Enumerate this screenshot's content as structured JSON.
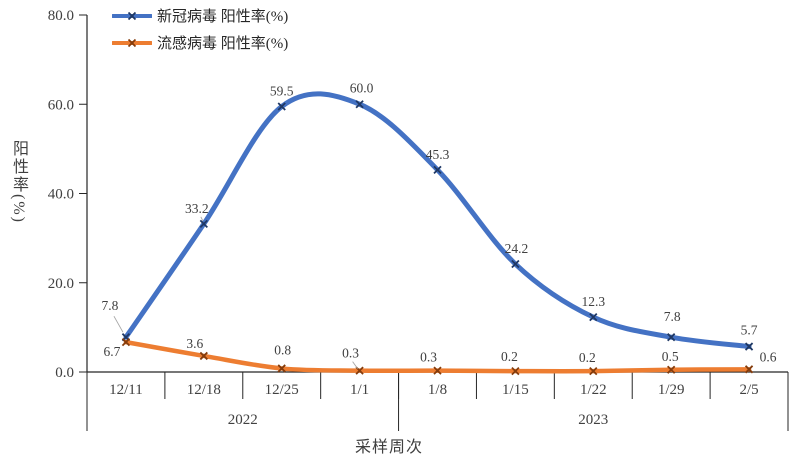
{
  "chart_data": {
    "type": "line",
    "title": "",
    "x_axis_label": "采样周次",
    "y_axis_label": "阳性率(%)",
    "grid": false,
    "legend_position": "top-left",
    "ylim": [
      0,
      80
    ],
    "y_ticks": [
      "0.0",
      "20.0",
      "40.0",
      "60.0",
      "80.0"
    ],
    "categories": [
      "12/11",
      "12/18",
      "12/25",
      "1/1",
      "1/8",
      "1/15",
      "1/22",
      "1/29",
      "2/5"
    ],
    "year_groups": [
      {
        "label": "2022",
        "span": 4
      },
      {
        "label": "2023",
        "span": 5
      }
    ],
    "series": [
      {
        "name": "新冠病毒 阳性率(%)",
        "color": "#4472C4",
        "marker_color": "#1F3864",
        "line_width": 5,
        "values": [
          7.8,
          33.2,
          59.5,
          60.0,
          45.3,
          24.2,
          12.3,
          7.8,
          5.7
        ],
        "labels": [
          "7.8",
          "33.2",
          "59.5",
          "60.0",
          "45.3",
          "24.2",
          "12.3",
          "7.8",
          "5.7"
        ]
      },
      {
        "name": "流感病毒 阳性率(%)",
        "color": "#ED7D31",
        "marker_color": "#843C0C",
        "line_width": 4.5,
        "values": [
          6.7,
          3.6,
          0.8,
          0.3,
          0.3,
          0.2,
          0.2,
          0.5,
          0.6
        ],
        "labels": [
          "6.7",
          "3.6",
          "0.8",
          "0.3",
          "0.3",
          "0.2",
          "0.2",
          "0.5",
          "0.6"
        ]
      }
    ],
    "colors": {
      "axis": "#262626",
      "tick_label": "#404040",
      "data_label": "#404040",
      "leader_line": "#A6A6A6"
    }
  }
}
